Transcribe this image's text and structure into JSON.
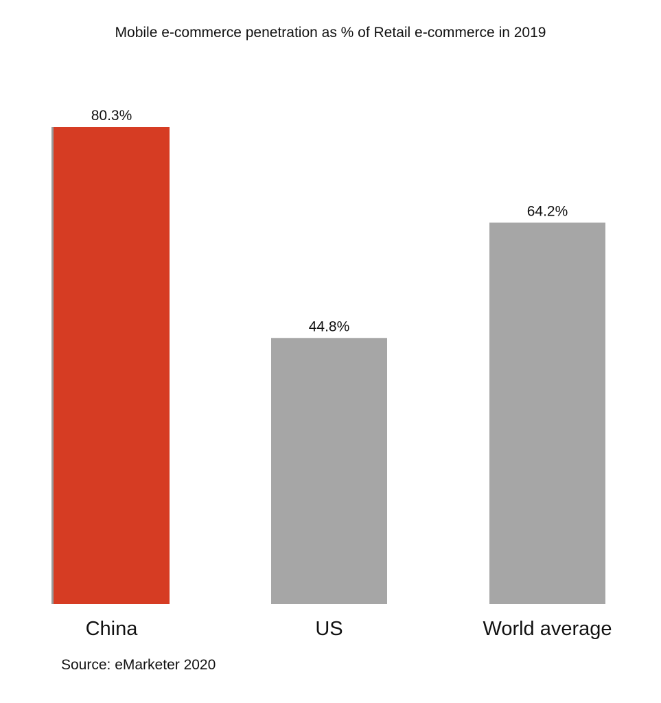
{
  "chart_data": {
    "type": "bar",
    "title": "Mobile e-commerce penetration as % of Retail e-commerce in 2019",
    "categories": [
      "China",
      "US",
      "World average"
    ],
    "values": [
      80.3,
      44.8,
      64.2
    ],
    "data_labels": [
      "80.3%",
      "44.8%",
      "64.2%"
    ],
    "colors": [
      "#d63c23",
      "#a6a6a6",
      "#a6a6a6"
    ],
    "xlabel": "",
    "ylabel": "",
    "grid": false,
    "legend": "none",
    "source": "Source: eMarketer 2020"
  }
}
